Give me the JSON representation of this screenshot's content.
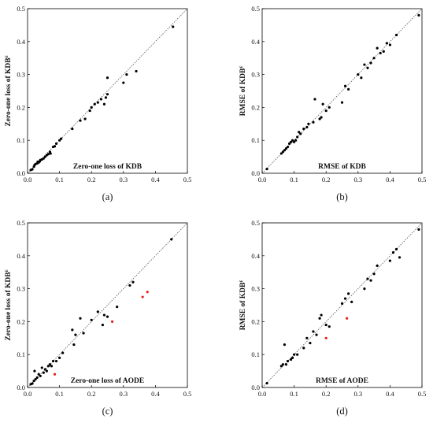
{
  "chart_data": [
    {
      "type": "scatter",
      "caption": "(a)",
      "xlabel": "Zero-one loss of KDB",
      "ylabel": "Zero-one loss of KDB",
      "ylabel_sup": "ε",
      "xlim": [
        0,
        0.5
      ],
      "ylim": [
        0,
        0.5
      ],
      "xticks": [
        "0.0",
        "0.1",
        "0.2",
        "0.3",
        "0.4",
        "0.5"
      ],
      "yticks": [
        "0.0",
        "0.1",
        "0.2",
        "0.3",
        "0.4",
        "0.5"
      ],
      "diagonal": true,
      "series": [
        {
          "color": "#000000",
          "points": [
            [
              0.01,
              0.01
            ],
            [
              0.015,
              0.012
            ],
            [
              0.02,
              0.02
            ],
            [
              0.022,
              0.025
            ],
            [
              0.025,
              0.028
            ],
            [
              0.03,
              0.03
            ],
            [
              0.032,
              0.035
            ],
            [
              0.035,
              0.033
            ],
            [
              0.038,
              0.036
            ],
            [
              0.04,
              0.04
            ],
            [
              0.045,
              0.042
            ],
            [
              0.05,
              0.045
            ],
            [
              0.055,
              0.05
            ],
            [
              0.06,
              0.055
            ],
            [
              0.065,
              0.058
            ],
            [
              0.07,
              0.065
            ],
            [
              0.072,
              0.06
            ],
            [
              0.08,
              0.08
            ],
            [
              0.085,
              0.082
            ],
            [
              0.09,
              0.09
            ],
            [
              0.1,
              0.1
            ],
            [
              0.105,
              0.105
            ],
            [
              0.14,
              0.135
            ],
            [
              0.165,
              0.16
            ],
            [
              0.18,
              0.165
            ],
            [
              0.195,
              0.19
            ],
            [
              0.2,
              0.2
            ],
            [
              0.21,
              0.21
            ],
            [
              0.22,
              0.215
            ],
            [
              0.23,
              0.225
            ],
            [
              0.24,
              0.21
            ],
            [
              0.245,
              0.23
            ],
            [
              0.25,
              0.24
            ],
            [
              0.25,
              0.29
            ],
            [
              0.3,
              0.275
            ],
            [
              0.31,
              0.3
            ],
            [
              0.34,
              0.31
            ],
            [
              0.455,
              0.445
            ]
          ]
        }
      ]
    },
    {
      "type": "scatter",
      "caption": "(b)",
      "xlabel": "RMSE of KDB",
      "ylabel": "RMSE of KDB",
      "ylabel_sup": "ε",
      "xlim": [
        0,
        0.5
      ],
      "ylim": [
        0,
        0.5
      ],
      "xticks": [
        "0.0",
        "0.1",
        "0.2",
        "0.3",
        "0.4",
        "0.5"
      ],
      "yticks": [
        "0.0",
        "0.1",
        "0.2",
        "0.3",
        "0.4",
        "0.5"
      ],
      "diagonal": true,
      "series": [
        {
          "color": "#000000",
          "points": [
            [
              0.015,
              0.013
            ],
            [
              0.06,
              0.06
            ],
            [
              0.065,
              0.065
            ],
            [
              0.07,
              0.07
            ],
            [
              0.075,
              0.075
            ],
            [
              0.08,
              0.08
            ],
            [
              0.085,
              0.09
            ],
            [
              0.09,
              0.095
            ],
            [
              0.095,
              0.1
            ],
            [
              0.1,
              0.095
            ],
            [
              0.105,
              0.1
            ],
            [
              0.11,
              0.11
            ],
            [
              0.115,
              0.125
            ],
            [
              0.12,
              0.12
            ],
            [
              0.13,
              0.135
            ],
            [
              0.14,
              0.14
            ],
            [
              0.145,
              0.15
            ],
            [
              0.16,
              0.155
            ],
            [
              0.165,
              0.225
            ],
            [
              0.18,
              0.165
            ],
            [
              0.185,
              0.17
            ],
            [
              0.19,
              0.21
            ],
            [
              0.2,
              0.19
            ],
            [
              0.21,
              0.2
            ],
            [
              0.25,
              0.215
            ],
            [
              0.26,
              0.265
            ],
            [
              0.27,
              0.255
            ],
            [
              0.3,
              0.3
            ],
            [
              0.31,
              0.29
            ],
            [
              0.32,
              0.33
            ],
            [
              0.33,
              0.32
            ],
            [
              0.34,
              0.335
            ],
            [
              0.35,
              0.35
            ],
            [
              0.36,
              0.38
            ],
            [
              0.37,
              0.365
            ],
            [
              0.38,
              0.37
            ],
            [
              0.39,
              0.395
            ],
            [
              0.4,
              0.39
            ],
            [
              0.42,
              0.42
            ],
            [
              0.49,
              0.48
            ]
          ]
        }
      ]
    },
    {
      "type": "scatter",
      "caption": "(c)",
      "xlabel": "Zero-one loss of AODE",
      "ylabel": "Zero-one loss of KDB",
      "ylabel_sup": "ε",
      "xlim": [
        0,
        0.5
      ],
      "ylim": [
        0,
        0.5
      ],
      "xticks": [
        "0.0",
        "0.1",
        "0.2",
        "0.3",
        "0.4",
        "0.5"
      ],
      "yticks": [
        "0.0",
        "0.1",
        "0.2",
        "0.3",
        "0.4",
        "0.5"
      ],
      "diagonal": true,
      "series": [
        {
          "color": "#000000",
          "points": [
            [
              0.01,
              0.01
            ],
            [
              0.015,
              0.012
            ],
            [
              0.02,
              0.02
            ],
            [
              0.022,
              0.05
            ],
            [
              0.025,
              0.025
            ],
            [
              0.03,
              0.03
            ],
            [
              0.035,
              0.04
            ],
            [
              0.04,
              0.035
            ],
            [
              0.045,
              0.06
            ],
            [
              0.05,
              0.045
            ],
            [
              0.055,
              0.055
            ],
            [
              0.06,
              0.05
            ],
            [
              0.065,
              0.065
            ],
            [
              0.07,
              0.07
            ],
            [
              0.075,
              0.065
            ],
            [
              0.08,
              0.08
            ],
            [
              0.09,
              0.08
            ],
            [
              0.1,
              0.09
            ],
            [
              0.11,
              0.105
            ],
            [
              0.14,
              0.175
            ],
            [
              0.145,
              0.13
            ],
            [
              0.15,
              0.16
            ],
            [
              0.165,
              0.21
            ],
            [
              0.175,
              0.165
            ],
            [
              0.2,
              0.205
            ],
            [
              0.22,
              0.23
            ],
            [
              0.235,
              0.19
            ],
            [
              0.24,
              0.22
            ],
            [
              0.25,
              0.215
            ],
            [
              0.28,
              0.245
            ],
            [
              0.32,
              0.31
            ],
            [
              0.33,
              0.32
            ],
            [
              0.45,
              0.45
            ]
          ]
        },
        {
          "color": "#e8201c",
          "points": [
            [
              0.085,
              0.04
            ],
            [
              0.265,
              0.2
            ],
            [
              0.36,
              0.275
            ],
            [
              0.375,
              0.29
            ]
          ]
        }
      ]
    },
    {
      "type": "scatter",
      "caption": "(d)",
      "xlabel": "RMSE of AODE",
      "ylabel": "RMSE of KDB",
      "ylabel_sup": "ε",
      "xlim": [
        0,
        0.5
      ],
      "ylim": [
        0,
        0.5
      ],
      "xticks": [
        "0.0",
        "0.1",
        "0.2",
        "0.3",
        "0.4",
        "0.5"
      ],
      "yticks": [
        "0.0",
        "0.1",
        "0.2",
        "0.3",
        "0.4",
        "0.5"
      ],
      "diagonal": true,
      "series": [
        {
          "color": "#000000",
          "points": [
            [
              0.015,
              0.013
            ],
            [
              0.06,
              0.065
            ],
            [
              0.065,
              0.07
            ],
            [
              0.07,
              0.13
            ],
            [
              0.075,
              0.07
            ],
            [
              0.08,
              0.08
            ],
            [
              0.09,
              0.085
            ],
            [
              0.095,
              0.09
            ],
            [
              0.1,
              0.1
            ],
            [
              0.11,
              0.1
            ],
            [
              0.13,
              0.12
            ],
            [
              0.14,
              0.15
            ],
            [
              0.15,
              0.135
            ],
            [
              0.16,
              0.17
            ],
            [
              0.17,
              0.16
            ],
            [
              0.18,
              0.21
            ],
            [
              0.185,
              0.22
            ],
            [
              0.2,
              0.19
            ],
            [
              0.21,
              0.185
            ],
            [
              0.25,
              0.255
            ],
            [
              0.26,
              0.27
            ],
            [
              0.27,
              0.285
            ],
            [
              0.28,
              0.26
            ],
            [
              0.32,
              0.3
            ],
            [
              0.33,
              0.33
            ],
            [
              0.34,
              0.325
            ],
            [
              0.35,
              0.345
            ],
            [
              0.36,
              0.37
            ],
            [
              0.4,
              0.385
            ],
            [
              0.41,
              0.41
            ],
            [
              0.42,
              0.42
            ],
            [
              0.43,
              0.395
            ],
            [
              0.49,
              0.48
            ]
          ]
        },
        {
          "color": "#e8201c",
          "points": [
            [
              0.2,
              0.15
            ],
            [
              0.265,
              0.21
            ]
          ]
        }
      ]
    }
  ]
}
